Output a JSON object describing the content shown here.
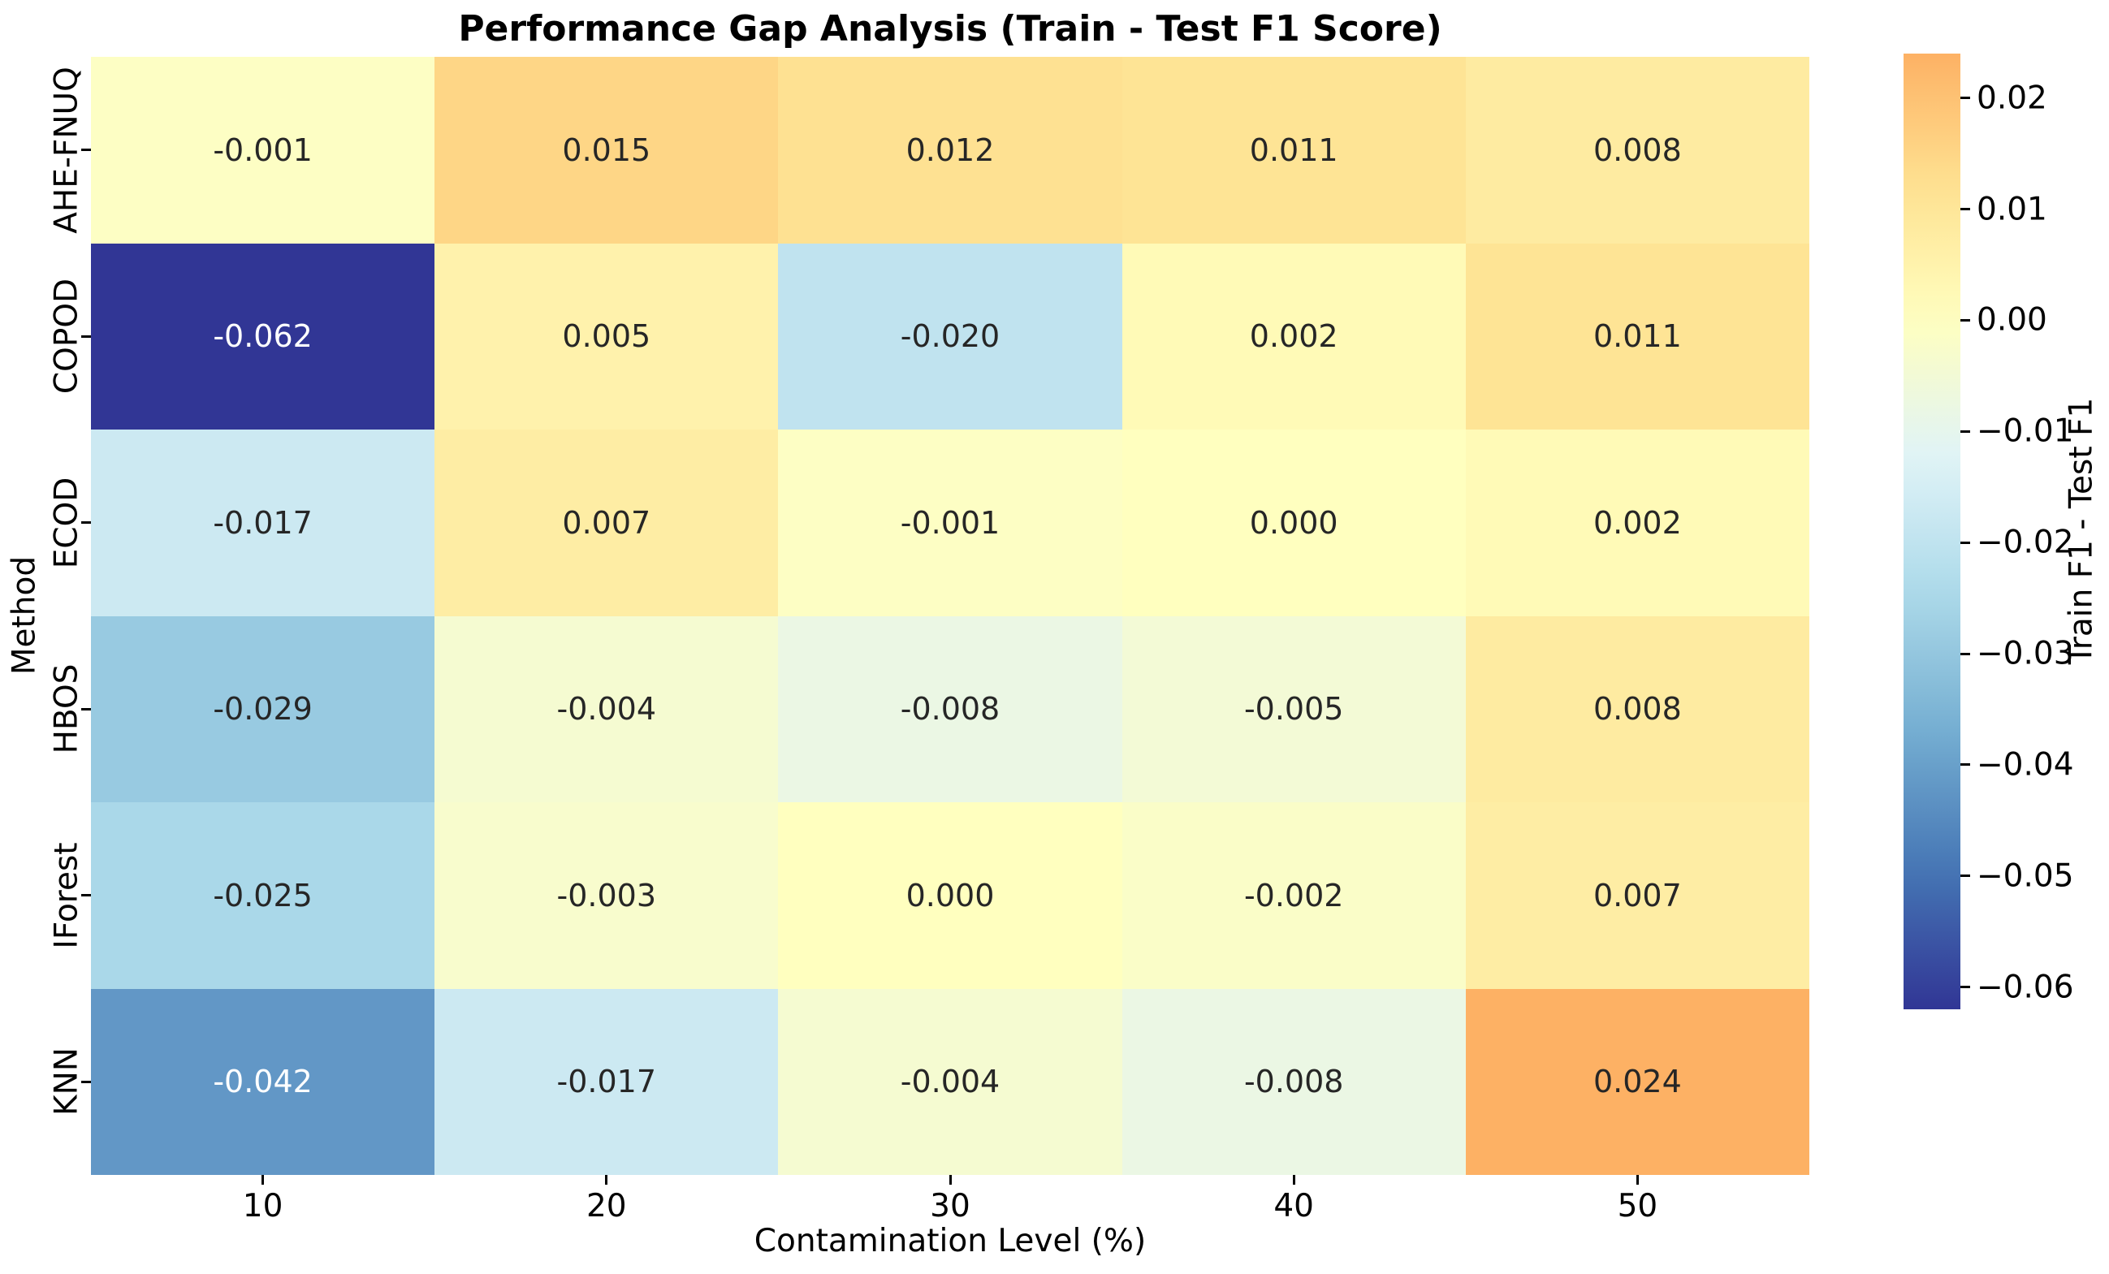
{
  "chart_data": {
    "type": "heatmap",
    "title": "Performance Gap Analysis (Train - Test F1 Score)",
    "xlabel": "Contamination Level (%)",
    "ylabel": "Method",
    "x_tick_labels": [
      "10",
      "20",
      "30",
      "40",
      "50"
    ],
    "y_tick_labels": [
      "AHE-FNUQ",
      "COPOD",
      "ECOD",
      "HBOS",
      "IForest",
      "KNN"
    ],
    "values": [
      [
        -0.001,
        0.015,
        0.012,
        0.011,
        0.008
      ],
      [
        -0.062,
        0.005,
        -0.02,
        0.002,
        0.011
      ],
      [
        -0.017,
        0.007,
        -0.001,
        0.0,
        0.002
      ],
      [
        -0.029,
        -0.004,
        -0.008,
        -0.005,
        0.008
      ],
      [
        -0.025,
        -0.003,
        0.0,
        -0.002,
        0.007
      ],
      [
        -0.042,
        -0.017,
        -0.004,
        -0.008,
        0.024
      ]
    ],
    "annot_decimals": 3,
    "grid": false,
    "colorbar": {
      "label": "Train F1 - Test F1",
      "cmap": "RdYlBu_r",
      "vmin": -0.062,
      "vmax": 0.024,
      "center": 0,
      "ticks": [
        {
          "value": 0.02,
          "label": "0.02"
        },
        {
          "value": 0.01,
          "label": "0.01"
        },
        {
          "value": 0.0,
          "label": "0.00"
        },
        {
          "value": -0.01,
          "label": "−0.01"
        },
        {
          "value": -0.02,
          "label": "−0.02"
        },
        {
          "value": -0.03,
          "label": "−0.03"
        },
        {
          "value": -0.04,
          "label": "−0.04"
        },
        {
          "value": -0.05,
          "label": "−0.05"
        },
        {
          "value": -0.06,
          "label": "−0.06"
        }
      ]
    },
    "key_colors": {
      "cmap_min": "#313695",
      "cmap_mid": "#ffffbf",
      "cmap_top": "#fdb164",
      "annotation_dark": "#262626",
      "annotation_light": "#ffffff"
    }
  }
}
